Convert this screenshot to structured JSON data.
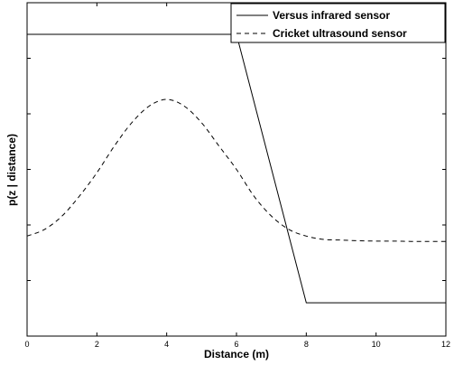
{
  "chart_data": {
    "type": "line",
    "title": "",
    "xlabel": "Distance (m)",
    "ylabel": "p(z | distance)",
    "xlim": [
      0,
      12
    ],
    "ylim": [
      0,
      1
    ],
    "grid": false,
    "legend_position": "top-right",
    "x_ticks": [
      "0",
      "2",
      "4",
      "6",
      "8",
      "10",
      "12"
    ],
    "y_ticks_labeled": false,
    "series": [
      {
        "name": "Versus infrared sensor",
        "style": "solid",
        "color": "#000000",
        "x": [
          0,
          6,
          8,
          12
        ],
        "y": [
          0.905,
          0.905,
          0.1,
          0.1
        ]
      },
      {
        "name": "Cricket ultrasound sensor",
        "style": "dashed",
        "color": "#000000",
        "x": [
          0,
          0.5,
          1,
          1.5,
          2,
          2.5,
          3,
          3.5,
          4,
          4.5,
          5,
          5.5,
          6,
          6.5,
          7,
          7.5,
          8,
          8.5,
          9,
          9.5,
          10,
          10.5,
          11,
          11.5,
          12
        ],
        "y": [
          0.3,
          0.32,
          0.36,
          0.42,
          0.49,
          0.57,
          0.64,
          0.69,
          0.71,
          0.69,
          0.64,
          0.57,
          0.5,
          0.42,
          0.36,
          0.32,
          0.3,
          0.29,
          0.288,
          0.286,
          0.285,
          0.285,
          0.284,
          0.284,
          0.284
        ]
      }
    ]
  }
}
